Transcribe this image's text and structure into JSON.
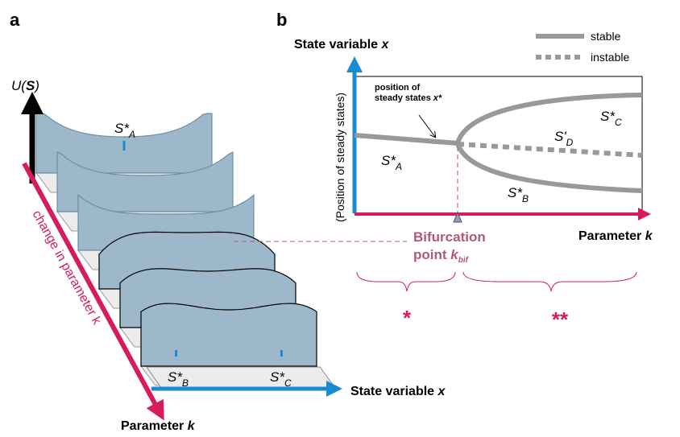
{
  "panel_a": {
    "letter": "a",
    "potential_label": {
      "text": "U(",
      "var": "S",
      "close": ")"
    },
    "well_a": {
      "main": "S*",
      "sub": "A"
    },
    "well_b": {
      "main": "S*",
      "sub": "B"
    },
    "well_c": {
      "main": "S*",
      "sub": "C"
    },
    "diagonal_label": "change in parameter k",
    "x_axis_label": {
      "text": "State variable",
      "var": "x"
    },
    "param_axis_label": {
      "text": "Parameter",
      "var": "k"
    }
  },
  "panel_b": {
    "letter": "b",
    "y_axis_label": {
      "text": "State variable",
      "var": "x"
    },
    "y_axis_sublabel": "(Position of steady states)",
    "annotation": {
      "line1": "position of",
      "line2": "steady states",
      "var": "x*"
    },
    "legend": {
      "stable": "stable",
      "instable": "instable"
    },
    "branch_a": {
      "main": "S*",
      "sub": "A"
    },
    "branch_b": {
      "main": "S*",
      "sub": "B"
    },
    "branch_c": {
      "main": "S*",
      "sub": "C"
    },
    "branch_d": {
      "main": "S'",
      "sub": "D"
    },
    "x_axis_label": {
      "text": "Parameter",
      "var": "k"
    },
    "bifurcation": {
      "line1": "Bifurcation",
      "line2": "point",
      "var": "k",
      "sub": "bif"
    },
    "region_1": "*",
    "region_2": "**"
  }
}
